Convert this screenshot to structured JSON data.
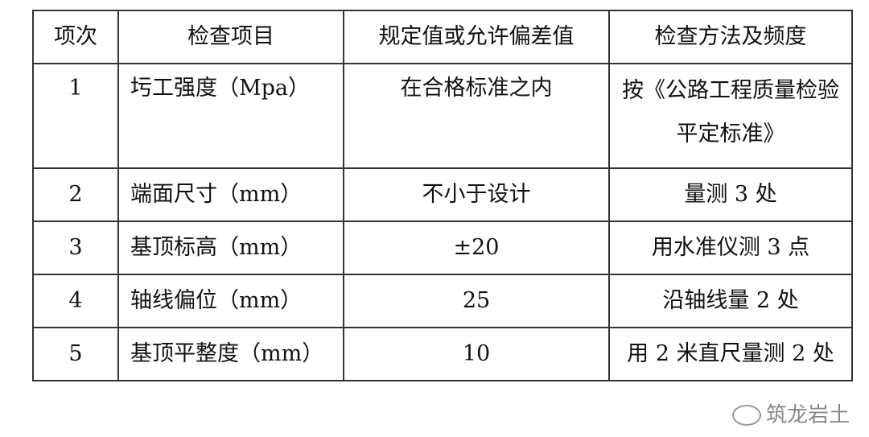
{
  "table": {
    "headers": [
      "项次",
      "检查项目",
      "规定值或允许偏差值",
      "检查方法及频度"
    ],
    "rows": [
      [
        "1",
        "圬工强度（Mpa）",
        "在合格标准之内",
        "按《公路工程质量检验平定标准》"
      ],
      [
        "2",
        "端面尺寸（mm）",
        "不小于设计",
        "量测 3 处"
      ],
      [
        "3",
        "基顶标高（mm）",
        "±20",
        "用水准仪测 3 点"
      ],
      [
        "4",
        "轴线偏位（mm）",
        "25",
        "沿轴线量 2 处"
      ],
      [
        "5",
        "基顶平整度（mm）",
        "10",
        "用 2 米直尺量测 2 处"
      ]
    ]
  },
  "watermark": {
    "text": "筑龙岩土",
    "icon": "wechat-icon"
  }
}
